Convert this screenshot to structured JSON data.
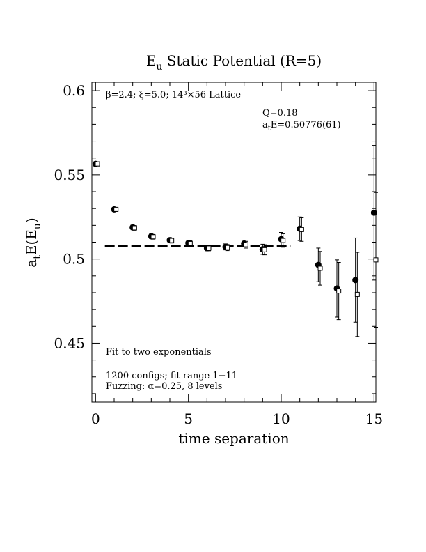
{
  "chart_data": {
    "type": "scatter",
    "title": "E",
    "title_sub": "u",
    "title_rest": " Static Potential (R=5)",
    "xlabel": "time separation",
    "ylabel_parts": [
      "a",
      "t",
      "E(E",
      "u",
      ")"
    ],
    "xlim": [
      -0.2,
      15.1
    ],
    "ylim": [
      0.415,
      0.605
    ],
    "xticks": [
      0,
      5,
      10,
      15
    ],
    "xtick_labels": [
      "0",
      "5",
      "10",
      "15"
    ],
    "yticks": [
      0.45,
      0.5,
      0.55,
      0.6
    ],
    "ytick_labels": [
      "0.45",
      "0.5",
      "0.55",
      "0.6"
    ],
    "annotations": {
      "lattice": "β=2.4; ξ=5.0; 14³×56 Lattice",
      "q": "Q=0.18",
      "ae_pre": "a",
      "ae_sub": "t",
      "ae_post": "E=0.50776(61)",
      "fit": "Fit to two exponentials",
      "configs": "1200 configs; fit range 1−11",
      "fuzz": "Fuzzing: α=0.25, 8 levels"
    },
    "fit_line": {
      "y": 0.50776,
      "x_range": [
        0.5,
        10.5
      ]
    },
    "series": [
      {
        "marker": "filled-circle",
        "x": [
          0,
          1,
          2,
          3,
          4,
          5,
          6,
          7,
          8,
          9,
          10,
          11,
          12,
          13,
          14,
          15
        ],
        "y": [
          0.5565,
          0.5295,
          0.5188,
          0.5135,
          0.5112,
          0.5095,
          0.5065,
          0.5072,
          0.5092,
          0.5058,
          0.5118,
          0.518,
          0.4965,
          0.4825,
          0.4875,
          0.5275
        ],
        "err": [
          0.0012,
          0.0012,
          0.0014,
          0.0014,
          0.0015,
          0.0016,
          0.0016,
          0.0018,
          0.002,
          0.003,
          0.004,
          0.007,
          0.01,
          0.017,
          0.025,
          0.04
        ]
      },
      {
        "marker": "open-square",
        "x": [
          0.1,
          1.1,
          2.1,
          3.1,
          4.1,
          5.1,
          6.1,
          7.1,
          8.1,
          9.1,
          10.1,
          11.1,
          12.1,
          13.1,
          14.1,
          15.1
        ],
        "y": [
          0.5565,
          0.5295,
          0.5185,
          0.5132,
          0.511,
          0.5092,
          0.5065,
          0.5068,
          0.5085,
          0.5055,
          0.511,
          0.5175,
          0.4945,
          0.481,
          0.479,
          0.4995
        ],
        "err": [
          0.0012,
          0.0012,
          0.0014,
          0.0014,
          0.0015,
          0.0016,
          0.0016,
          0.0018,
          0.002,
          0.003,
          0.004,
          0.007,
          0.01,
          0.017,
          0.025,
          0.04
        ]
      }
    ]
  }
}
